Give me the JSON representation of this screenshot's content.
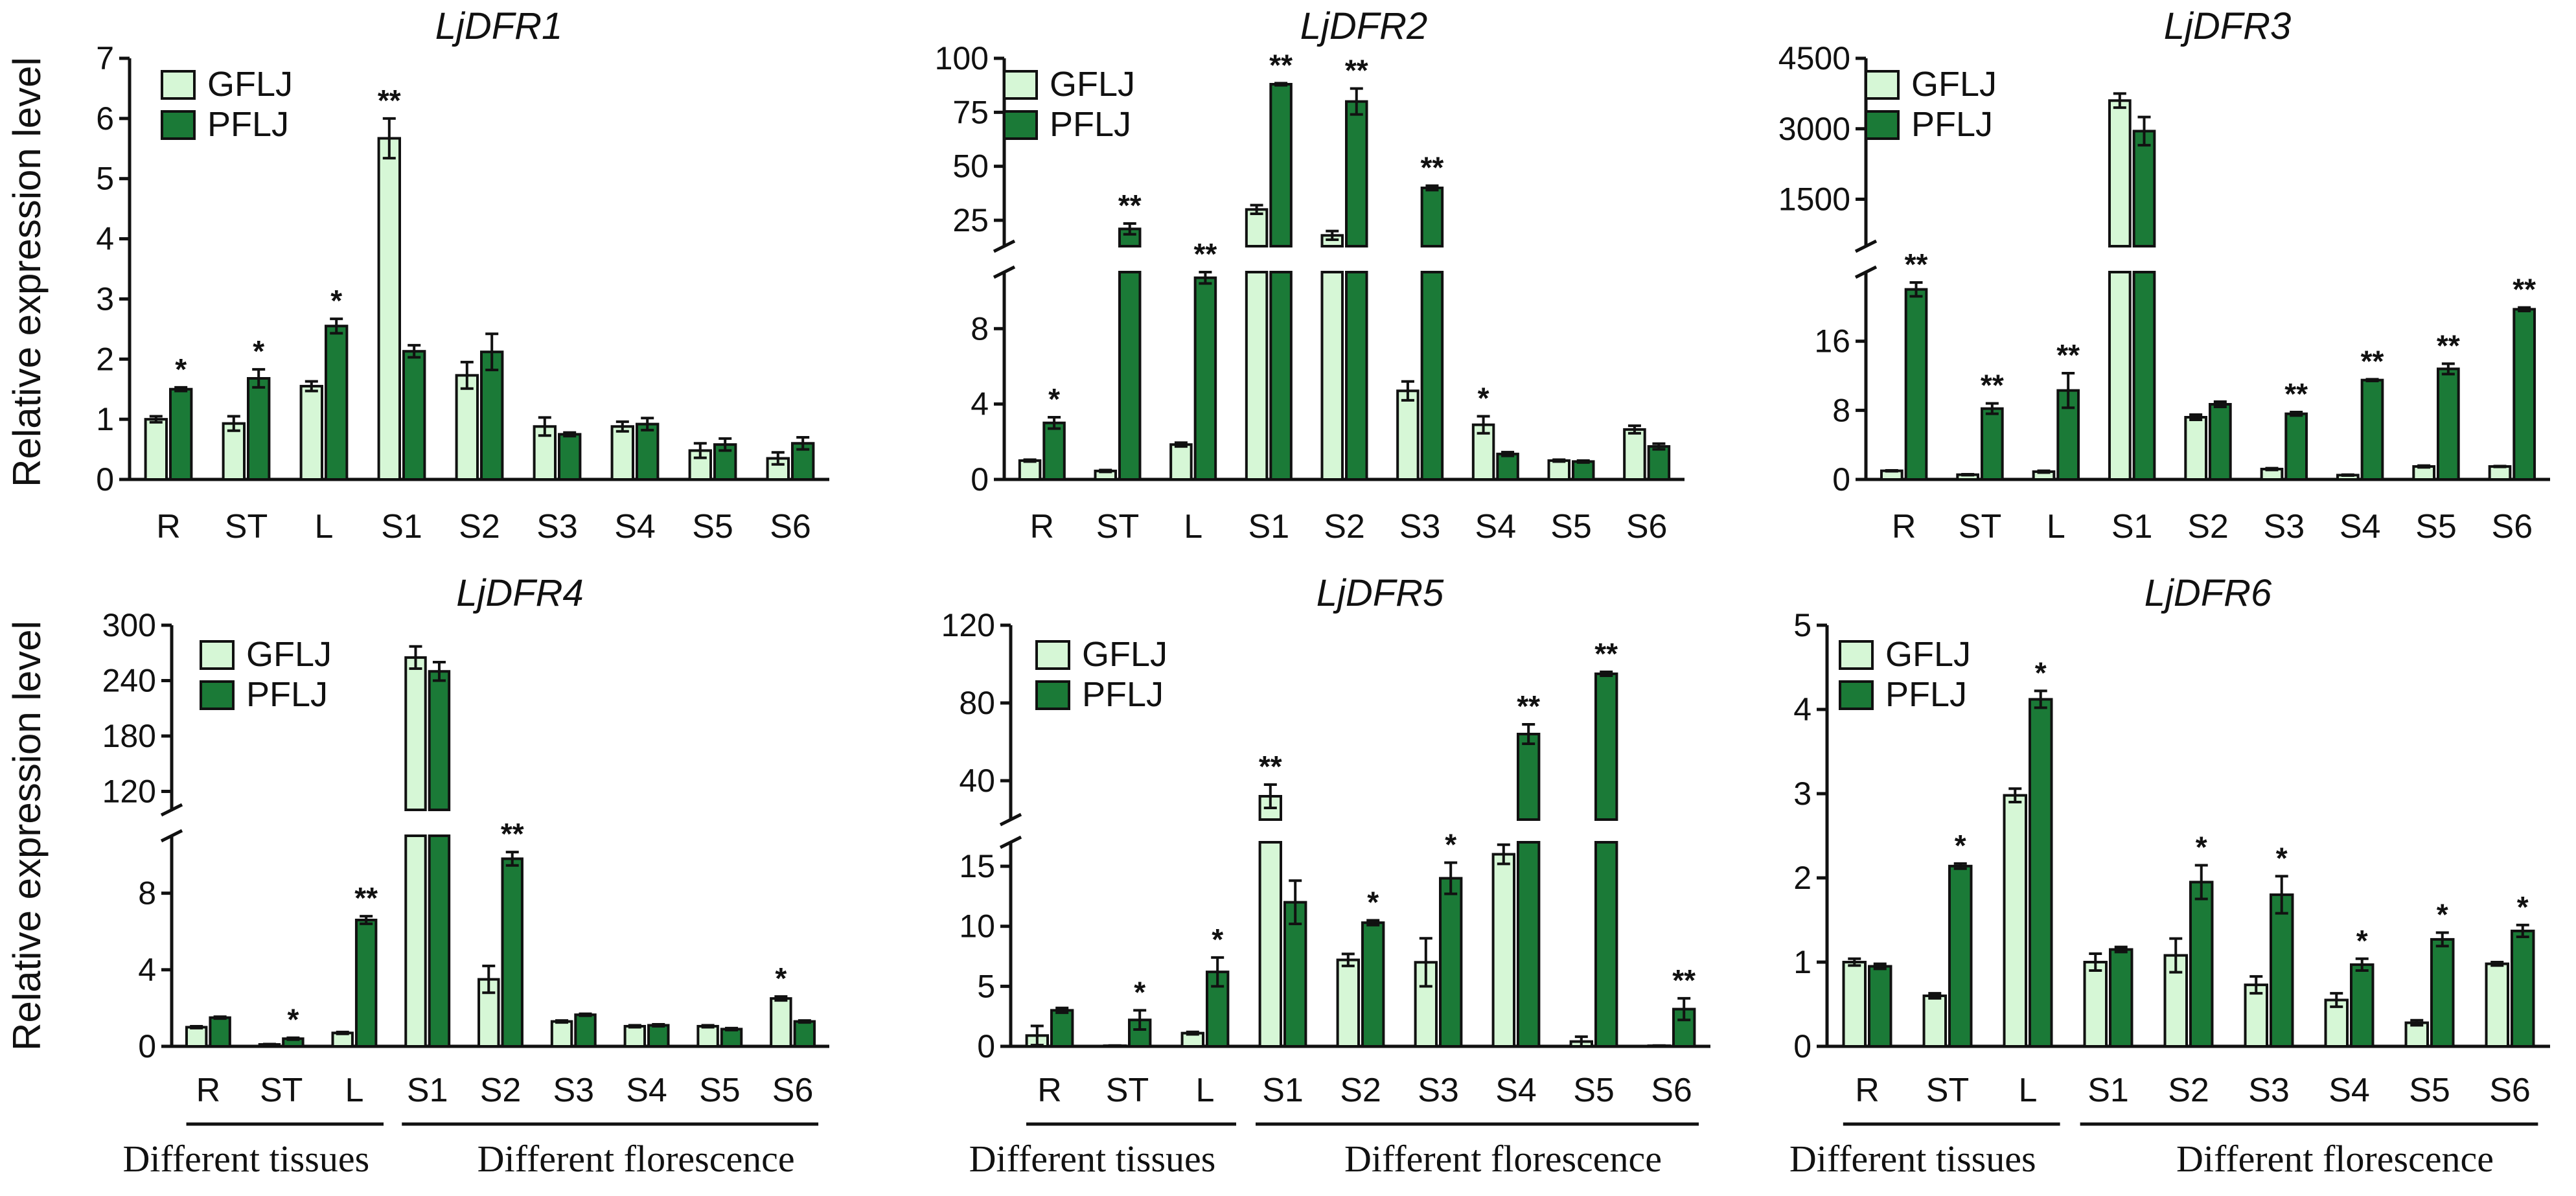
{
  "figure": {
    "ylabel": "Relative expression level",
    "colors": {
      "GFLJ": "#d6f7d6",
      "PFLJ": "#1b7a37",
      "stroke": "#111111"
    },
    "group_labels": {
      "tissues": "Different tissues",
      "florescence": "Different florescence"
    }
  },
  "chart_data": [
    {
      "type": "bar",
      "title": "LjDFR1",
      "categories": [
        "R",
        "ST",
        "L",
        "S1",
        "S2",
        "S3",
        "S4",
        "S5",
        "S6"
      ],
      "legend": [
        "GFLJ",
        "PFLJ"
      ],
      "ylim": [
        0,
        7
      ],
      "yticks": [
        0,
        1,
        2,
        3,
        4,
        5,
        6,
        7
      ],
      "series": [
        {
          "name": "GFLJ",
          "values": [
            1.0,
            0.93,
            1.55,
            5.67,
            1.73,
            0.88,
            0.88,
            0.48,
            0.35
          ],
          "errors": [
            0.05,
            0.12,
            0.08,
            0.33,
            0.22,
            0.15,
            0.08,
            0.12,
            0.1
          ]
        },
        {
          "name": "PFLJ",
          "values": [
            1.5,
            1.68,
            2.55,
            2.13,
            2.12,
            0.75,
            0.92,
            0.58,
            0.6
          ],
          "errors": [
            0.03,
            0.15,
            0.12,
            0.1,
            0.3,
            0.03,
            0.1,
            0.1,
            0.1
          ]
        }
      ],
      "significance": [
        {
          "category": "R",
          "series": "PFLJ",
          "mark": "*"
        },
        {
          "category": "ST",
          "series": "PFLJ",
          "mark": "*"
        },
        {
          "category": "L",
          "series": "PFLJ",
          "mark": "*"
        },
        {
          "category": "S1",
          "series": "GFLJ",
          "mark": "**"
        }
      ]
    },
    {
      "type": "bar",
      "title": "LjDFR2",
      "categories": [
        "R",
        "ST",
        "L",
        "S1",
        "S2",
        "S3",
        "S4",
        "S5",
        "S6"
      ],
      "legend": [
        "GFLJ",
        "PFLJ"
      ],
      "broken_axis": {
        "lower": [
          0,
          11
        ],
        "upper": [
          13,
          100
        ]
      },
      "yticks": [
        0,
        4,
        8,
        25,
        50,
        75,
        100
      ],
      "series": [
        {
          "name": "GFLJ",
          "values": [
            1.0,
            0.45,
            1.85,
            30.0,
            18.0,
            4.7,
            2.9,
            1.0,
            2.65
          ],
          "errors": [
            0.05,
            0.05,
            0.1,
            2.0,
            2.0,
            0.5,
            0.45,
            0.05,
            0.2
          ]
        },
        {
          "name": "PFLJ",
          "values": [
            3.0,
            21.0,
            10.7,
            88.0,
            80.0,
            40.0,
            1.35,
            0.95,
            1.75
          ],
          "errors": [
            0.3,
            2.5,
            0.3,
            0.5,
            6.0,
            1.0,
            0.1,
            0.05,
            0.15
          ]
        }
      ],
      "significance": [
        {
          "category": "R",
          "series": "PFLJ",
          "mark": "*"
        },
        {
          "category": "ST",
          "series": "PFLJ",
          "mark": "**"
        },
        {
          "category": "L",
          "series": "PFLJ",
          "mark": "**"
        },
        {
          "category": "S1",
          "series": "PFLJ",
          "mark": "**"
        },
        {
          "category": "S2",
          "series": "PFLJ",
          "mark": "**"
        },
        {
          "category": "S3",
          "series": "PFLJ",
          "mark": "**"
        },
        {
          "category": "S4",
          "series": "GFLJ",
          "mark": "*"
        }
      ]
    },
    {
      "type": "bar",
      "title": "LjDFR3",
      "categories": [
        "R",
        "ST",
        "L",
        "S1",
        "S2",
        "S3",
        "S4",
        "S5",
        "S6"
      ],
      "legend": [
        "GFLJ",
        "PFLJ"
      ],
      "broken_axis": {
        "lower": [
          0,
          24
        ],
        "upper": [
          500,
          4500
        ]
      },
      "yticks": [
        0,
        8,
        16,
        1500,
        3000,
        4500
      ],
      "series": [
        {
          "name": "GFLJ",
          "values": [
            1.0,
            0.55,
            0.9,
            3600,
            7.2,
            1.2,
            0.5,
            1.5,
            1.5
          ],
          "errors": [
            0.05,
            0.05,
            0.1,
            150,
            0.3,
            0.1,
            0.05,
            0.1,
            0.05
          ]
        },
        {
          "name": "PFLJ",
          "values": [
            22.0,
            8.2,
            10.3,
            2950,
            8.7,
            7.6,
            11.5,
            12.8,
            19.7
          ],
          "errors": [
            0.8,
            0.6,
            2.0,
            300,
            0.3,
            0.2,
            0.1,
            0.6,
            0.2
          ]
        }
      ],
      "significance": [
        {
          "category": "R",
          "series": "PFLJ",
          "mark": "**"
        },
        {
          "category": "ST",
          "series": "PFLJ",
          "mark": "**"
        },
        {
          "category": "L",
          "series": "PFLJ",
          "mark": "**"
        },
        {
          "category": "S3",
          "series": "PFLJ",
          "mark": "**"
        },
        {
          "category": "S4",
          "series": "PFLJ",
          "mark": "**"
        },
        {
          "category": "S5",
          "series": "PFLJ",
          "mark": "**"
        },
        {
          "category": "S6",
          "series": "PFLJ",
          "mark": "**"
        }
      ]
    },
    {
      "type": "bar",
      "title": "LjDFR4",
      "categories": [
        "R",
        "ST",
        "L",
        "S1",
        "S2",
        "S3",
        "S4",
        "S5",
        "S6"
      ],
      "legend": [
        "GFLJ",
        "PFLJ"
      ],
      "broken_axis": {
        "lower": [
          0,
          11
        ],
        "upper": [
          100,
          300
        ]
      },
      "yticks": [
        0,
        4,
        8,
        120,
        180,
        240,
        300
      ],
      "series": [
        {
          "name": "GFLJ",
          "values": [
            1.0,
            0.1,
            0.7,
            265,
            3.5,
            1.3,
            1.05,
            1.05,
            2.5
          ],
          "errors": [
            0.05,
            0.02,
            0.05,
            12,
            0.7,
            0.05,
            0.05,
            0.05,
            0.1
          ]
        },
        {
          "name": "PFLJ",
          "values": [
            1.5,
            0.4,
            6.6,
            250,
            9.8,
            1.65,
            1.1,
            0.9,
            1.3
          ],
          "errors": [
            0.05,
            0.05,
            0.2,
            10,
            0.35,
            0.05,
            0.05,
            0.05,
            0.05
          ]
        }
      ],
      "significance": [
        {
          "category": "ST",
          "series": "PFLJ",
          "mark": "*"
        },
        {
          "category": "L",
          "series": "PFLJ",
          "mark": "**"
        },
        {
          "category": "S2",
          "series": "PFLJ",
          "mark": "**"
        },
        {
          "category": "S6",
          "series": "GFLJ",
          "mark": "*"
        }
      ]
    },
    {
      "type": "bar",
      "title": "LjDFR5",
      "categories": [
        "R",
        "ST",
        "L",
        "S1",
        "S2",
        "S3",
        "S4",
        "S5",
        "S6"
      ],
      "legend": [
        "GFLJ",
        "PFLJ"
      ],
      "broken_axis": {
        "lower": [
          0,
          17
        ],
        "upper": [
          20,
          120
        ]
      },
      "yticks": [
        0,
        5,
        10,
        15,
        40,
        80,
        120
      ],
      "series": [
        {
          "name": "GFLJ",
          "values": [
            0.9,
            0.05,
            1.1,
            32,
            7.2,
            7.0,
            16.0,
            0.4,
            0.05
          ],
          "errors": [
            0.8,
            0.02,
            0.1,
            6,
            0.5,
            2.0,
            0.8,
            0.4,
            0.02
          ]
        },
        {
          "name": "PFLJ",
          "values": [
            3.0,
            2.2,
            6.2,
            12.0,
            10.3,
            14.0,
            64.0,
            95.0,
            3.1
          ],
          "errors": [
            0.2,
            0.8,
            1.2,
            1.8,
            0.2,
            1.3,
            5.0,
            1.0,
            0.9
          ]
        }
      ],
      "significance": [
        {
          "category": "ST",
          "series": "PFLJ",
          "mark": "*"
        },
        {
          "category": "L",
          "series": "PFLJ",
          "mark": "*"
        },
        {
          "category": "S1",
          "series": "GFLJ",
          "mark": "**"
        },
        {
          "category": "S2",
          "series": "PFLJ",
          "mark": "*"
        },
        {
          "category": "S3",
          "series": "PFLJ",
          "mark": "*"
        },
        {
          "category": "S4",
          "series": "PFLJ",
          "mark": "**"
        },
        {
          "category": "S5",
          "series": "PFLJ",
          "mark": "**"
        },
        {
          "category": "S6",
          "series": "PFLJ",
          "mark": "**"
        }
      ]
    },
    {
      "type": "bar",
      "title": "LjDFR6",
      "categories": [
        "R",
        "ST",
        "L",
        "S1",
        "S2",
        "S3",
        "S4",
        "S5",
        "S6"
      ],
      "legend": [
        "GFLJ",
        "PFLJ"
      ],
      "ylim": [
        0,
        5
      ],
      "yticks": [
        0,
        1,
        2,
        3,
        4,
        5
      ],
      "series": [
        {
          "name": "GFLJ",
          "values": [
            1.0,
            0.6,
            2.98,
            1.0,
            1.08,
            0.73,
            0.55,
            0.28,
            0.98
          ],
          "errors": [
            0.04,
            0.03,
            0.08,
            0.1,
            0.2,
            0.1,
            0.08,
            0.03,
            0.02
          ]
        },
        {
          "name": "PFLJ",
          "values": [
            0.95,
            2.14,
            4.12,
            1.15,
            1.95,
            1.8,
            0.97,
            1.27,
            1.37
          ],
          "errors": [
            0.03,
            0.03,
            0.1,
            0.03,
            0.2,
            0.22,
            0.07,
            0.08,
            0.07
          ]
        }
      ],
      "significance": [
        {
          "category": "ST",
          "series": "PFLJ",
          "mark": "*"
        },
        {
          "category": "L",
          "series": "PFLJ",
          "mark": "*"
        },
        {
          "category": "S2",
          "series": "PFLJ",
          "mark": "*"
        },
        {
          "category": "S3",
          "series": "PFLJ",
          "mark": "*"
        },
        {
          "category": "S4",
          "series": "PFLJ",
          "mark": "*"
        },
        {
          "category": "S5",
          "series": "PFLJ",
          "mark": "*"
        },
        {
          "category": "S6",
          "series": "PFLJ",
          "mark": "*"
        }
      ]
    }
  ]
}
